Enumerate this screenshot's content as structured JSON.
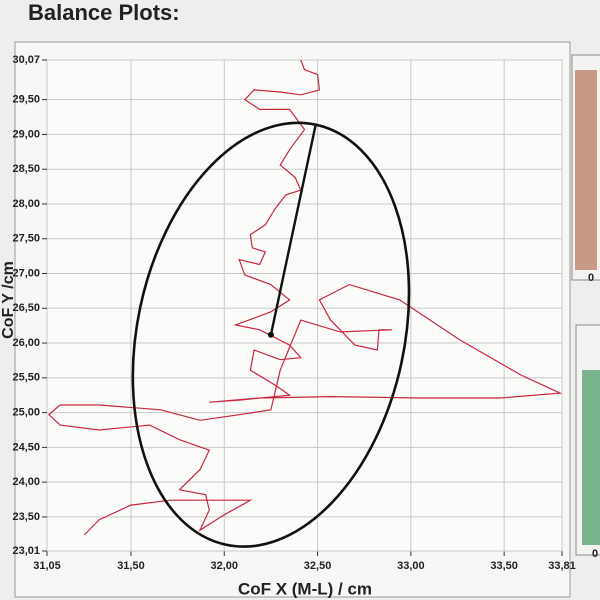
{
  "chart_data": {
    "type": "line",
    "title": "Balance Plots:",
    "x_label": "CoF X (M-L)  / cm",
    "y_label": "CoF Y /cm",
    "xlim": [
      31.05,
      33.81
    ],
    "ylim": [
      23.01,
      30.07
    ],
    "xticks": [
      {
        "value": 31.05,
        "label": "31,05"
      },
      {
        "value": 31.5,
        "label": "31,50"
      },
      {
        "value": 32,
        "label": "32,00"
      },
      {
        "value": 32.5,
        "label": "32,50"
      },
      {
        "value": 33,
        "label": "33,00"
      },
      {
        "value": 33.5,
        "label": "33,50"
      },
      {
        "value": 33.81,
        "label": "33,81"
      }
    ],
    "yticks": [
      {
        "value": 23.01,
        "label": "23,01"
      },
      {
        "value": 23.5,
        "label": "23,50"
      },
      {
        "value": 24,
        "label": "24,00"
      },
      {
        "value": 24.5,
        "label": "24,50"
      },
      {
        "value": 25,
        "label": "25,00"
      },
      {
        "value": 25.5,
        "label": "25,50"
      },
      {
        "value": 26,
        "label": "26,00"
      },
      {
        "value": 26.5,
        "label": "26,50"
      },
      {
        "value": 27,
        "label": "27,00"
      },
      {
        "value": 27.5,
        "label": "27,50"
      },
      {
        "value": 28,
        "label": "28,00"
      },
      {
        "value": 28.5,
        "label": "28,50"
      },
      {
        "value": 29,
        "label": "29,00"
      },
      {
        "value": 29.5,
        "label": "29,50"
      },
      {
        "value": 30.07,
        "label": "30,07"
      }
    ],
    "grid": true,
    "series": [
      {
        "color": "#c8283c",
        "x": [
          32.41,
          32.43,
          32.5,
          32.51,
          32.41,
          32.3,
          32.16,
          32.11,
          32.19,
          32.35,
          32.43,
          32.35,
          32.3,
          32.38,
          32.41,
          32.33,
          32.27,
          32.22,
          32.14,
          32.15,
          32.22,
          32.19,
          32.08,
          32.11,
          32.25,
          32.35,
          32.25,
          32.06,
          32.19,
          32.35,
          32.41,
          32.3,
          32.16,
          32.14,
          32.27,
          32.35,
          32.08,
          31.92,
          32.19,
          32.57,
          33.05,
          33.48,
          33.8,
          33.59,
          33.26,
          32.94,
          32.67,
          32.51,
          32.57,
          32.7,
          32.82,
          32.83,
          32.9,
          32.62,
          32.41,
          32.3,
          32.25,
          32.08,
          31.87,
          31.66,
          31.33,
          31.12,
          31.06,
          31.12,
          31.33,
          31.6,
          31.76,
          31.92,
          31.87,
          31.76,
          31.9,
          31.92,
          31.87,
          32.0,
          32.14,
          31.95,
          31.71,
          31.5,
          31.33,
          31.25
        ],
        "y": [
          30.07,
          29.93,
          29.86,
          29.64,
          29.57,
          29.61,
          29.64,
          29.5,
          29.36,
          29.36,
          29.07,
          28.78,
          28.56,
          28.38,
          28.2,
          28.13,
          27.92,
          27.7,
          27.56,
          27.37,
          27.31,
          27.13,
          27.2,
          26.98,
          26.84,
          26.62,
          26.45,
          26.26,
          26.19,
          25.97,
          25.79,
          25.76,
          25.9,
          25.61,
          25.4,
          25.25,
          25.18,
          25.15,
          25.21,
          25.23,
          25.21,
          25.21,
          25.28,
          25.54,
          26.05,
          26.62,
          26.84,
          26.62,
          26.33,
          25.97,
          25.9,
          26.19,
          26.19,
          26.16,
          26.33,
          25.61,
          25.04,
          24.97,
          24.89,
          25.04,
          25.11,
          25.11,
          24.97,
          24.82,
          24.75,
          24.82,
          24.61,
          24.46,
          24.18,
          23.89,
          23.82,
          23.6,
          23.31,
          23.53,
          23.74,
          23.74,
          23.74,
          23.67,
          23.46,
          23.24
        ]
      }
    ],
    "ellipse": {
      "color": "#111111",
      "center": [
        32.25,
        26.12
      ],
      "major_axis_end": [
        32.49,
        29.14
      ],
      "minor_axis_end": [
        32.95,
        25.72
      ]
    },
    "side_labels": [
      "0",
      "0"
    ]
  }
}
